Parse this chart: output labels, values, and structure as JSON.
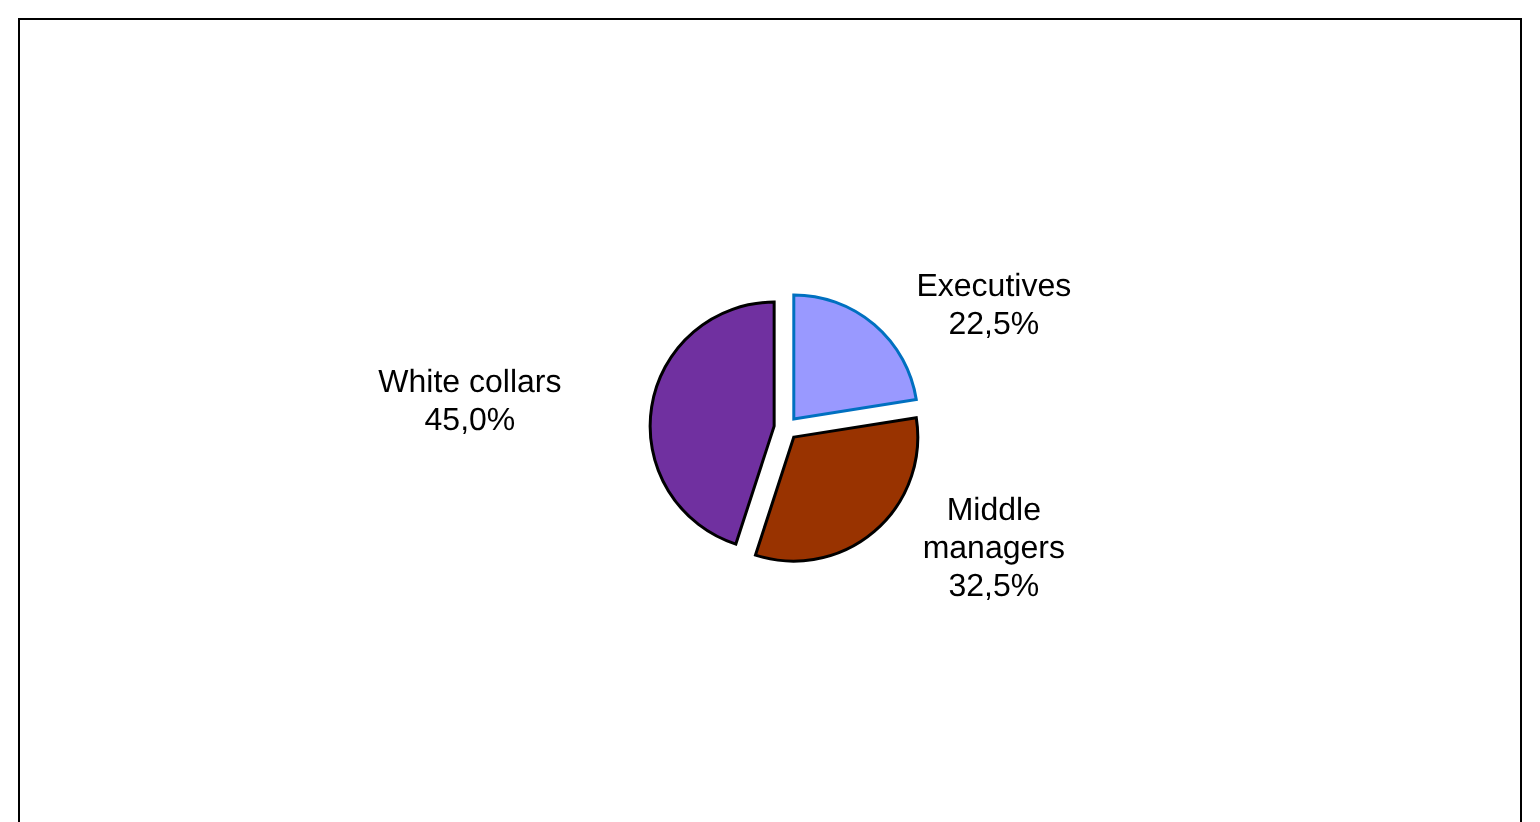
{
  "chart_data": {
    "type": "pie",
    "categories": [
      "Executives",
      "Middle managers",
      "White collars"
    ],
    "values": [
      22.5,
      32.5,
      45.0
    ],
    "value_labels": [
      "22,5%",
      "32,5%",
      "45,0%"
    ],
    "colors": [
      "#9999ff",
      "#993300",
      "#7030a0"
    ],
    "legend": false
  }
}
